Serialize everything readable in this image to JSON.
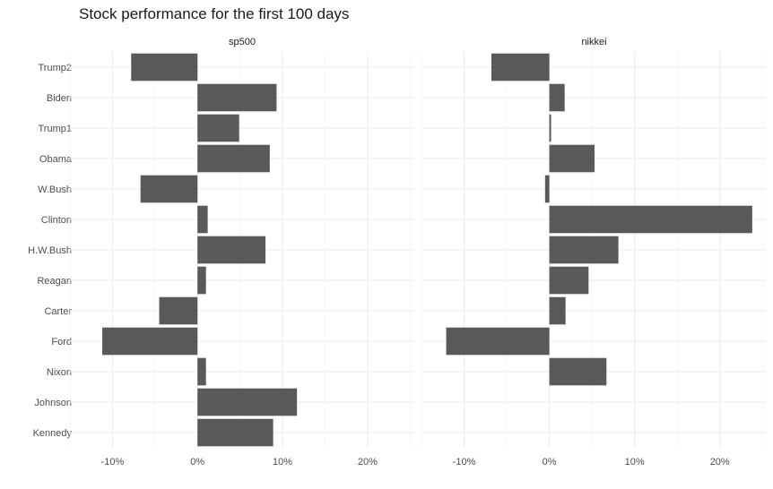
{
  "title": "Stock performance for the first 100 days",
  "chart_data": {
    "type": "bar",
    "orientation": "horizontal",
    "facets": [
      "sp500",
      "nikkei"
    ],
    "categories": [
      "Trump2",
      "Biden",
      "Trump1",
      "Obama",
      "W.Bush",
      "Clinton",
      "H.W.Bush",
      "Reagan",
      "Carter",
      "Ford",
      "Nixon",
      "Johnson",
      "Kennedy"
    ],
    "series": [
      {
        "facet": "sp500",
        "values": [
          -7.8,
          9.3,
          4.9,
          8.5,
          -6.7,
          1.2,
          8.0,
          1.0,
          -4.5,
          -11.2,
          1.0,
          11.7,
          8.9
        ]
      },
      {
        "facet": "nikkei",
        "values": [
          -6.8,
          1.8,
          0.2,
          5.3,
          -0.5,
          23.8,
          8.1,
          4.6,
          1.9,
          -12.1,
          6.7,
          0,
          0
        ]
      }
    ],
    "x_ticks": [
      "-10%",
      "0%",
      "10%",
      "20%"
    ],
    "x_tick_values": [
      -10,
      0,
      10,
      20
    ],
    "xlim": [
      -15,
      25.5
    ],
    "bar_color": "#595959",
    "grid": true,
    "theme": "minimal"
  }
}
